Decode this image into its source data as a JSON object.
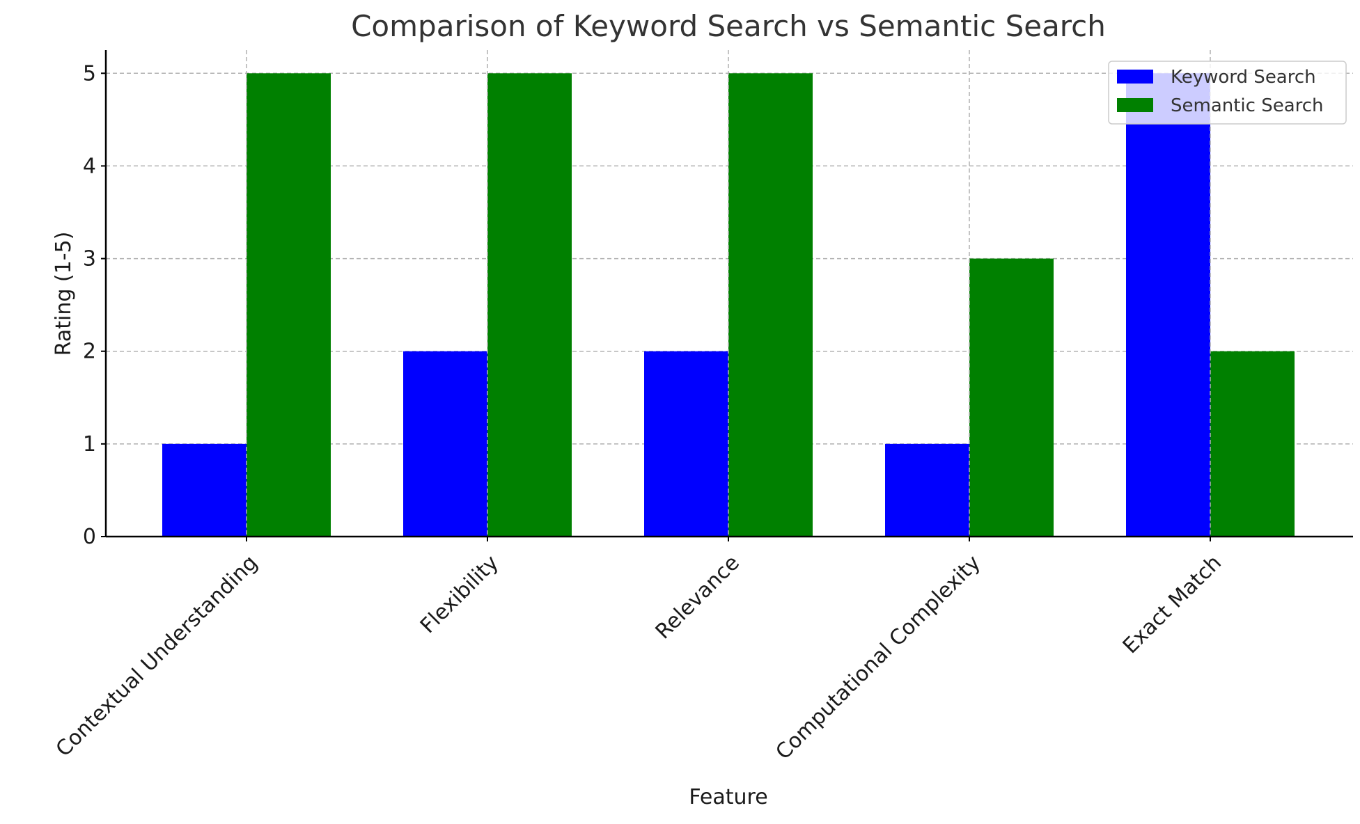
{
  "chart_data": {
    "type": "bar",
    "title": "Comparison of Keyword Search vs Semantic Search",
    "xlabel": "Feature",
    "ylabel": "Rating (1-5)",
    "categories": [
      "Contextual Understanding",
      "Flexibility",
      "Relevance",
      "Computational Complexity",
      "Exact Match"
    ],
    "series": [
      {
        "name": "Keyword Search",
        "values": [
          1,
          2,
          2,
          1,
          5
        ],
        "color": "#0000ff"
      },
      {
        "name": "Semantic Search",
        "values": [
          5,
          5,
          5,
          3,
          2
        ],
        "color": "#008000"
      }
    ],
    "yticks": [
      "0",
      "1",
      "2",
      "3",
      "4",
      "5"
    ],
    "ylim": [
      0,
      5.25
    ],
    "grid": true,
    "legend_position": "top-right"
  }
}
